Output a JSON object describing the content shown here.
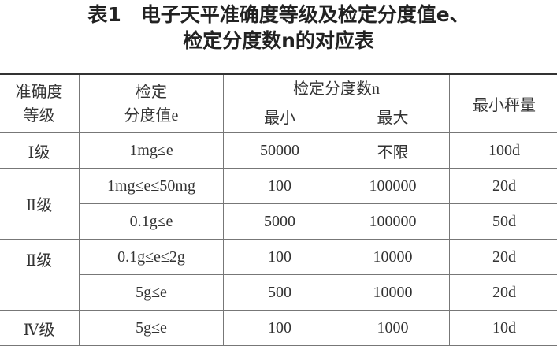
{
  "title": {
    "line1": "表1　电子天平准确度等级及检定分度值e、",
    "line2": "检定分度数n的对应表"
  },
  "headers": {
    "grade_line1": "准确度",
    "grade_line2": "等级",
    "e_line1": "检定",
    "e_line2": "分度值e",
    "n": "检定分度数n",
    "n_min": "最小",
    "n_max": "最大",
    "min_weigh": "最小秤量"
  },
  "rows": [
    {
      "grade": "Ⅰ级",
      "e": "1mg≤e",
      "min": "50000",
      "max": "不限",
      "weigh": "100d"
    },
    {
      "grade": "Ⅱ级",
      "e": "1mg≤e≤50mg",
      "min": "100",
      "max": "100000",
      "weigh": "20d"
    },
    {
      "e": "0.1g≤e",
      "min": "5000",
      "max": "100000",
      "weigh": "50d"
    },
    {
      "grade": "Ⅱ级",
      "e": "0.1g≤e≤2g",
      "min": "100",
      "max": "10000",
      "weigh": "20d"
    },
    {
      "e": "5g≤e",
      "min": "500",
      "max": "10000",
      "weigh": "20d"
    },
    {
      "grade": "Ⅳ级",
      "e": "5g≤e",
      "min": "100",
      "max": "1000",
      "weigh": "10d"
    }
  ]
}
